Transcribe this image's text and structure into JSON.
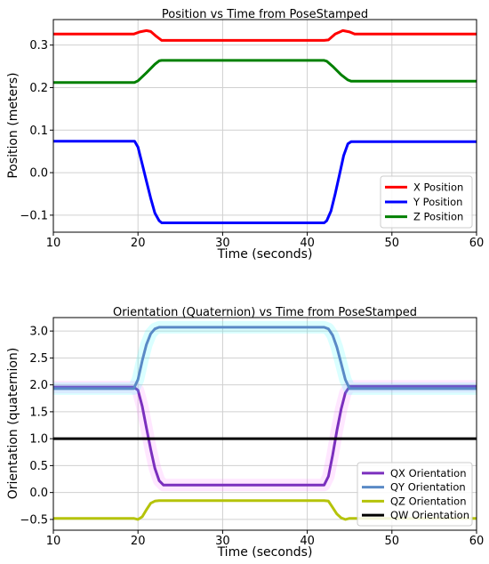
{
  "chart_data": [
    {
      "type": "line",
      "title": "Position vs Time from PoseStamped",
      "xlabel": "Time (seconds)",
      "ylabel": "Position (meters)",
      "xlim": [
        10,
        60
      ],
      "ylim": [
        -0.14,
        0.36
      ],
      "xticks": [
        10,
        20,
        30,
        40,
        50,
        60
      ],
      "yticks": [
        -0.1,
        0.0,
        0.1,
        0.2,
        0.3
      ],
      "ytick_labels": [
        "−0.1",
        "0.0",
        "0.1",
        "0.2",
        "0.3"
      ],
      "grid": true,
      "legend_position": "lower-right",
      "series": [
        {
          "name": "X Position",
          "color": "#ff0000",
          "points": [
            [
              10,
              0.326
            ],
            [
              19.5,
              0.326
            ],
            [
              20.2,
              0.331
            ],
            [
              21,
              0.334
            ],
            [
              21.5,
              0.332
            ],
            [
              22.2,
              0.32
            ],
            [
              22.8,
              0.311
            ],
            [
              42,
              0.311
            ],
            [
              42.5,
              0.312
            ],
            [
              43.3,
              0.326
            ],
            [
              44.2,
              0.334
            ],
            [
              45,
              0.331
            ],
            [
              45.6,
              0.326
            ],
            [
              60,
              0.326
            ]
          ]
        },
        {
          "name": "Y Position",
          "color": "#0000ff",
          "points": [
            [
              10,
              0.074
            ],
            [
              19.6,
              0.074
            ],
            [
              20,
              0.06
            ],
            [
              20.5,
              0.02
            ],
            [
              21,
              -0.02
            ],
            [
              21.5,
              -0.06
            ],
            [
              22,
              -0.095
            ],
            [
              22.5,
              -0.113
            ],
            [
              22.8,
              -0.118
            ],
            [
              42,
              -0.118
            ],
            [
              42.3,
              -0.113
            ],
            [
              42.8,
              -0.09
            ],
            [
              43.3,
              -0.05
            ],
            [
              43.8,
              -0.005
            ],
            [
              44.3,
              0.04
            ],
            [
              44.8,
              0.068
            ],
            [
              45.2,
              0.073
            ],
            [
              60,
              0.073
            ]
          ]
        },
        {
          "name": "Z Position",
          "color": "#008000",
          "points": [
            [
              10,
              0.212
            ],
            [
              19.6,
              0.212
            ],
            [
              20,
              0.216
            ],
            [
              21,
              0.235
            ],
            [
              22,
              0.255
            ],
            [
              22.5,
              0.263
            ],
            [
              22.8,
              0.264
            ],
            [
              42,
              0.264
            ],
            [
              42.3,
              0.262
            ],
            [
              43,
              0.25
            ],
            [
              44,
              0.23
            ],
            [
              44.8,
              0.218
            ],
            [
              45.2,
              0.215
            ],
            [
              60,
              0.215
            ]
          ]
        }
      ]
    },
    {
      "type": "line",
      "title": "Orientation (Quaternion) vs Time from PoseStamped",
      "xlabel": "Time (seconds)",
      "ylabel": "Orientation (quaternion)",
      "xlim": [
        10,
        60
      ],
      "ylim": [
        -0.7,
        3.25
      ],
      "xticks": [
        10,
        20,
        30,
        40,
        50,
        60
      ],
      "yticks": [
        -0.5,
        0.0,
        0.5,
        1.0,
        1.5,
        2.0,
        2.5,
        3.0
      ],
      "ytick_labels": [
        "−0.5",
        "0.0",
        "0.5",
        "1.0",
        "1.5",
        "2.0",
        "2.5",
        "3.0"
      ],
      "grid": true,
      "legend_position": "lower-right",
      "series": [
        {
          "name": "QX Orientation",
          "color": "#7b2fbe",
          "glow": "#ff7bff",
          "points": [
            [
              10,
              1.96
            ],
            [
              19.5,
              1.96
            ],
            [
              20,
              1.9
            ],
            [
              20.5,
              1.6
            ],
            [
              21,
              1.2
            ],
            [
              21.5,
              0.8
            ],
            [
              22,
              0.45
            ],
            [
              22.5,
              0.22
            ],
            [
              23,
              0.14
            ],
            [
              42,
              0.14
            ],
            [
              42.5,
              0.3
            ],
            [
              43,
              0.7
            ],
            [
              43.5,
              1.15
            ],
            [
              44,
              1.55
            ],
            [
              44.5,
              1.85
            ],
            [
              45,
              1.97
            ],
            [
              60,
              1.97
            ]
          ]
        },
        {
          "name": "QY Orientation",
          "color": "#5a8ac6",
          "glow": "#33ffff",
          "points": [
            [
              10,
              1.93
            ],
            [
              19.5,
              1.93
            ],
            [
              20,
              2.1
            ],
            [
              20.5,
              2.45
            ],
            [
              21,
              2.75
            ],
            [
              21.5,
              2.95
            ],
            [
              22,
              3.04
            ],
            [
              22.5,
              3.07
            ],
            [
              42,
              3.07
            ],
            [
              42.5,
              3.04
            ],
            [
              43,
              2.92
            ],
            [
              43.5,
              2.7
            ],
            [
              44,
              2.4
            ],
            [
              44.5,
              2.1
            ],
            [
              45,
              1.93
            ],
            [
              60,
              1.93
            ]
          ]
        },
        {
          "name": "QZ Orientation",
          "color": "#b5c30a",
          "points": [
            [
              10,
              -0.48
            ],
            [
              19.5,
              -0.48
            ],
            [
              20,
              -0.5
            ],
            [
              20.5,
              -0.45
            ],
            [
              21,
              -0.32
            ],
            [
              21.5,
              -0.2
            ],
            [
              22,
              -0.16
            ],
            [
              22.5,
              -0.15
            ],
            [
              42,
              -0.15
            ],
            [
              42.5,
              -0.16
            ],
            [
              43,
              -0.28
            ],
            [
              43.5,
              -0.4
            ],
            [
              44,
              -0.47
            ],
            [
              44.5,
              -0.5
            ],
            [
              45,
              -0.48
            ],
            [
              60,
              -0.48
            ]
          ]
        },
        {
          "name": "QW Orientation",
          "color": "#000000",
          "points": [
            [
              10,
              1.0
            ],
            [
              60,
              1.0
            ]
          ]
        }
      ]
    }
  ]
}
